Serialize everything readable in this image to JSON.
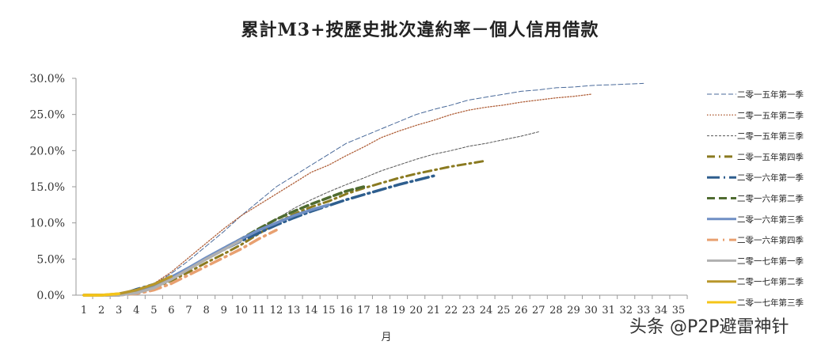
{
  "chart_data": {
    "type": "line",
    "title": "累計M3+按歷史批次違約率－個人信用借款",
    "xlabel": "月",
    "ylabel": "",
    "xlim": [
      1,
      35
    ],
    "ylim": [
      0,
      30
    ],
    "yticks": [
      "0.0%",
      "5.0%",
      "10.0%",
      "15.0%",
      "20.0%",
      "25.0%",
      "30.0%"
    ],
    "legend": "right",
    "series": [
      {
        "name": "二零一五年第一季",
        "color": "#4a6a9a",
        "dash": "6,3",
        "width": 1,
        "values": [
          0,
          0,
          0.1,
          0.5,
          1.5,
          3,
          4.8,
          6.8,
          8.8,
          11,
          13,
          15,
          16.5,
          18,
          19.5,
          21,
          22,
          23,
          24,
          25,
          25.7,
          26.3,
          27,
          27.4,
          27.8,
          28.2,
          28.4,
          28.7,
          28.8,
          29,
          29.1,
          29.2,
          29.3
        ]
      },
      {
        "name": "二零一五年第二季",
        "color": "#b0603a",
        "dash": "1.5,2",
        "width": 1.3,
        "values": [
          0,
          0,
          0.1,
          0.5,
          1.6,
          3.2,
          5.2,
          7.2,
          9.2,
          11,
          12.5,
          14,
          15.5,
          17,
          18,
          19.3,
          20.5,
          21.8,
          22.7,
          23.5,
          24.2,
          25,
          25.6,
          26,
          26.3,
          26.7,
          27,
          27.3,
          27.5,
          27.8
        ]
      },
      {
        "name": "二零一五年第三季",
        "color": "#555",
        "dash": "3,2",
        "width": 1,
        "values": [
          0,
          0,
          0,
          0.3,
          1.2,
          2.5,
          3.8,
          5,
          6.3,
          7.5,
          9,
          10.5,
          12,
          13.2,
          14.3,
          15.3,
          16.2,
          17.2,
          18,
          18.8,
          19.5,
          20,
          20.6,
          21,
          21.5,
          22,
          22.6
        ]
      },
      {
        "name": "二零一五年第四季",
        "color": "#8a7a20",
        "dash": "10,5,2,5",
        "width": 3,
        "values": [
          0,
          0,
          0,
          0.3,
          1,
          2,
          3.2,
          4.5,
          5.7,
          7,
          8.5,
          10,
          11.2,
          12.2,
          13,
          14,
          14.8,
          15.5,
          16.2,
          16.8,
          17.3,
          17.8,
          18.2,
          18.6
        ]
      },
      {
        "name": "二零一六年第一季",
        "color": "#2e5e8e",
        "dash": "16,5,2,5",
        "width": 3.5,
        "values": [
          0,
          0,
          0,
          0.8,
          1.5,
          2.5,
          3.7,
          5,
          6.3,
          7.5,
          8.6,
          9.7,
          10.7,
          11.6,
          12.4,
          13.2,
          13.9,
          14.6,
          15.3,
          15.9,
          16.5
        ]
      },
      {
        "name": "二零一六年第二季",
        "color": "#4f6b30",
        "dash": "10,5",
        "width": 3.5,
        "values": [
          0,
          0,
          0,
          0.4,
          1.2,
          2.3,
          3.6,
          5,
          6.5,
          7.8,
          9.2,
          10.5,
          11.6,
          12.6,
          13.5,
          14.4,
          15
        ]
      },
      {
        "name": "二零一六年第三季",
        "color": "#6f8fc4",
        "dash": "",
        "width": 3.5,
        "values": [
          0,
          0,
          0,
          0.4,
          1.3,
          2.5,
          3.8,
          5.2,
          6.5,
          7.8,
          9,
          10,
          11,
          11.8,
          12.5
        ]
      },
      {
        "name": "二零一六年第四季",
        "color": "#e8a070",
        "dash": "14,6,2,6",
        "width": 3.5,
        "values": [
          0,
          0,
          0,
          0.2,
          0.7,
          1.6,
          2.8,
          4,
          5.2,
          6.4,
          7.8,
          9
        ]
      },
      {
        "name": "二零一七年第一季",
        "color": "#b0b0b0",
        "dash": "",
        "width": 3.5,
        "values": [
          0,
          0,
          0,
          0.3,
          1,
          2.2,
          3.6,
          5,
          6.3,
          7.6
        ]
      },
      {
        "name": "二零一七年第二季",
        "color": "#b8962a",
        "dash": "",
        "width": 3.5,
        "values": [
          0,
          0,
          0.2,
          0.7,
          1.5,
          2.6
        ]
      },
      {
        "name": "二零一七年第三季",
        "color": "#f5c518",
        "dash": "",
        "width": 3.5,
        "values": [
          0,
          0,
          0.2
        ]
      }
    ]
  },
  "watermark": "头条 @P2P避雷神针"
}
